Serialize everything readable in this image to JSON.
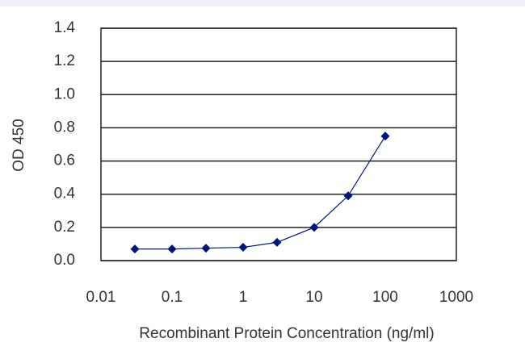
{
  "chart_data": {
    "type": "line",
    "log_x": true,
    "grid": true,
    "x_label": "Recombinant Protein Concentration (ng/ml)",
    "y_label": "OD 450",
    "x": [
      0.03,
      0.1,
      0.3,
      1,
      3,
      10,
      30,
      100
    ],
    "series": [
      {
        "color": "#00137f",
        "values": [
          0.07,
          0.07,
          0.075,
          0.08,
          0.11,
          0.2,
          0.39,
          0.75
        ]
      }
    ],
    "xlim": [
      0.01,
      1000
    ],
    "xticks": [
      0.01,
      0.1,
      1,
      10,
      100,
      1000
    ],
    "ylim": [
      0,
      1.4
    ],
    "yticks": [
      {
        "value": 0,
        "label": "0.0"
      },
      0.2,
      0.4,
      0.6,
      0.8,
      {
        "value": 1,
        "label": "1.0"
      },
      1.2,
      1.4
    ]
  }
}
